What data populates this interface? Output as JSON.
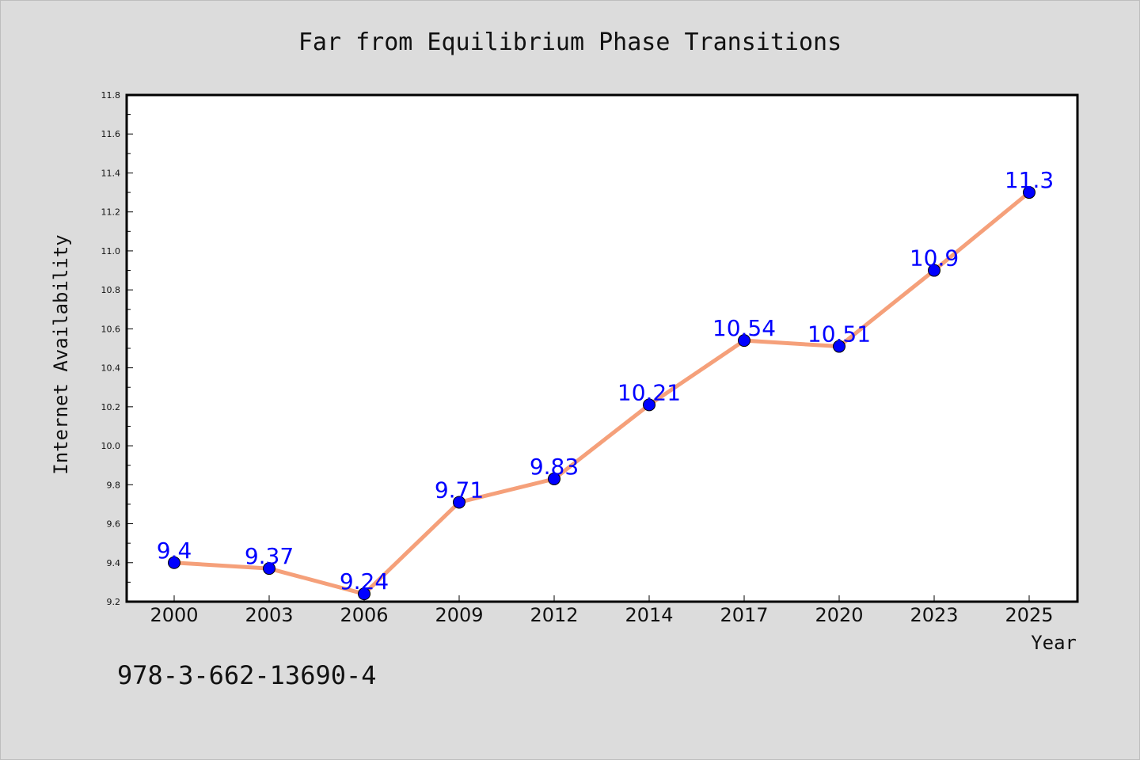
{
  "chart_data": {
    "type": "line",
    "title": "Far from Equilibrium Phase Transitions",
    "xlabel": "Year",
    "ylabel": "Internet Availability",
    "categories": [
      "2000",
      "2003",
      "2006",
      "2009",
      "2012",
      "2014",
      "2017",
      "2020",
      "2023",
      "2025"
    ],
    "series": [
      {
        "values": [
          9.4,
          9.37,
          9.24,
          9.71,
          9.83,
          10.21,
          10.54,
          10.51,
          10.9,
          11.3
        ],
        "data_labels": [
          "9.4",
          "9.37",
          "9.24",
          "9.71",
          "9.83",
          "10.21",
          "10.54",
          "10.51",
          "10.9",
          "11.3"
        ]
      }
    ],
    "ylim": [
      9.2,
      11.8
    ],
    "yticks": [
      "9.2",
      "9.4",
      "9.6",
      "9.8",
      "10.0",
      "10.2",
      "10.4",
      "10.6",
      "10.8",
      "11.0",
      "11.2",
      "11.4",
      "11.6",
      "11.8"
    ],
    "grid": false,
    "legend": "none",
    "line_color": "#f5a07a",
    "marker_color": "#0000ff",
    "label_color": "#0000ff"
  },
  "footer_text": "978-3-662-13690-4"
}
